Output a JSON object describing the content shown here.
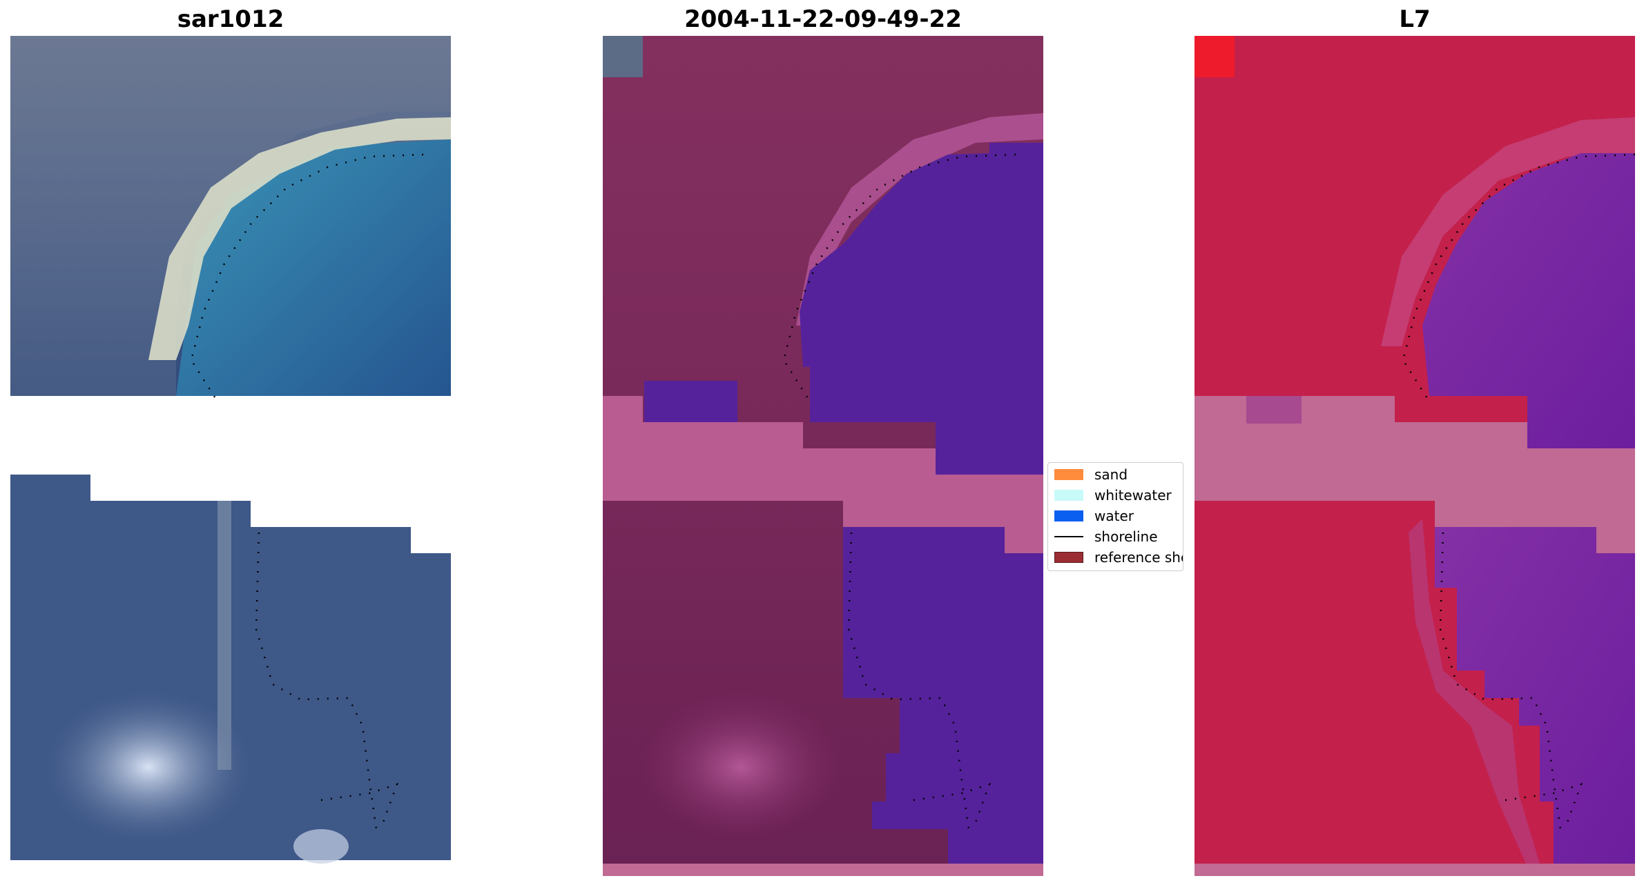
{
  "panels": [
    {
      "title": "sar1012",
      "scene": "rgb"
    },
    {
      "title": "2004-11-22-09-49-22",
      "scene": "classified"
    },
    {
      "title": "L7",
      "scene": "index"
    }
  ],
  "legend": {
    "items": [
      {
        "label": "sand",
        "color": "#ff8c3c",
        "kind": "patch"
      },
      {
        "label": "whitewater",
        "color": "#c8fafa",
        "kind": "patch"
      },
      {
        "label": "water",
        "color": "#0a5ff0",
        "kind": "patch"
      },
      {
        "label": "shoreline",
        "color": "#000000",
        "kind": "line"
      },
      {
        "label": "reference shoreline",
        "color": "#9b2d34",
        "kind": "patch"
      }
    ]
  },
  "colors": {
    "rgb_land": "#4a5f86",
    "rgb_sand": "#d8dccb",
    "rgb_water_top": "#2d7ea8",
    "rgb_water_bottom": "#2e4d86",
    "class_land": "#73245a",
    "class_water": "#55229b",
    "class_nodata": "#b85c92",
    "index_land": "#c3204c",
    "index_water": "#7a28a8",
    "index_nodata": "#c06a94"
  }
}
